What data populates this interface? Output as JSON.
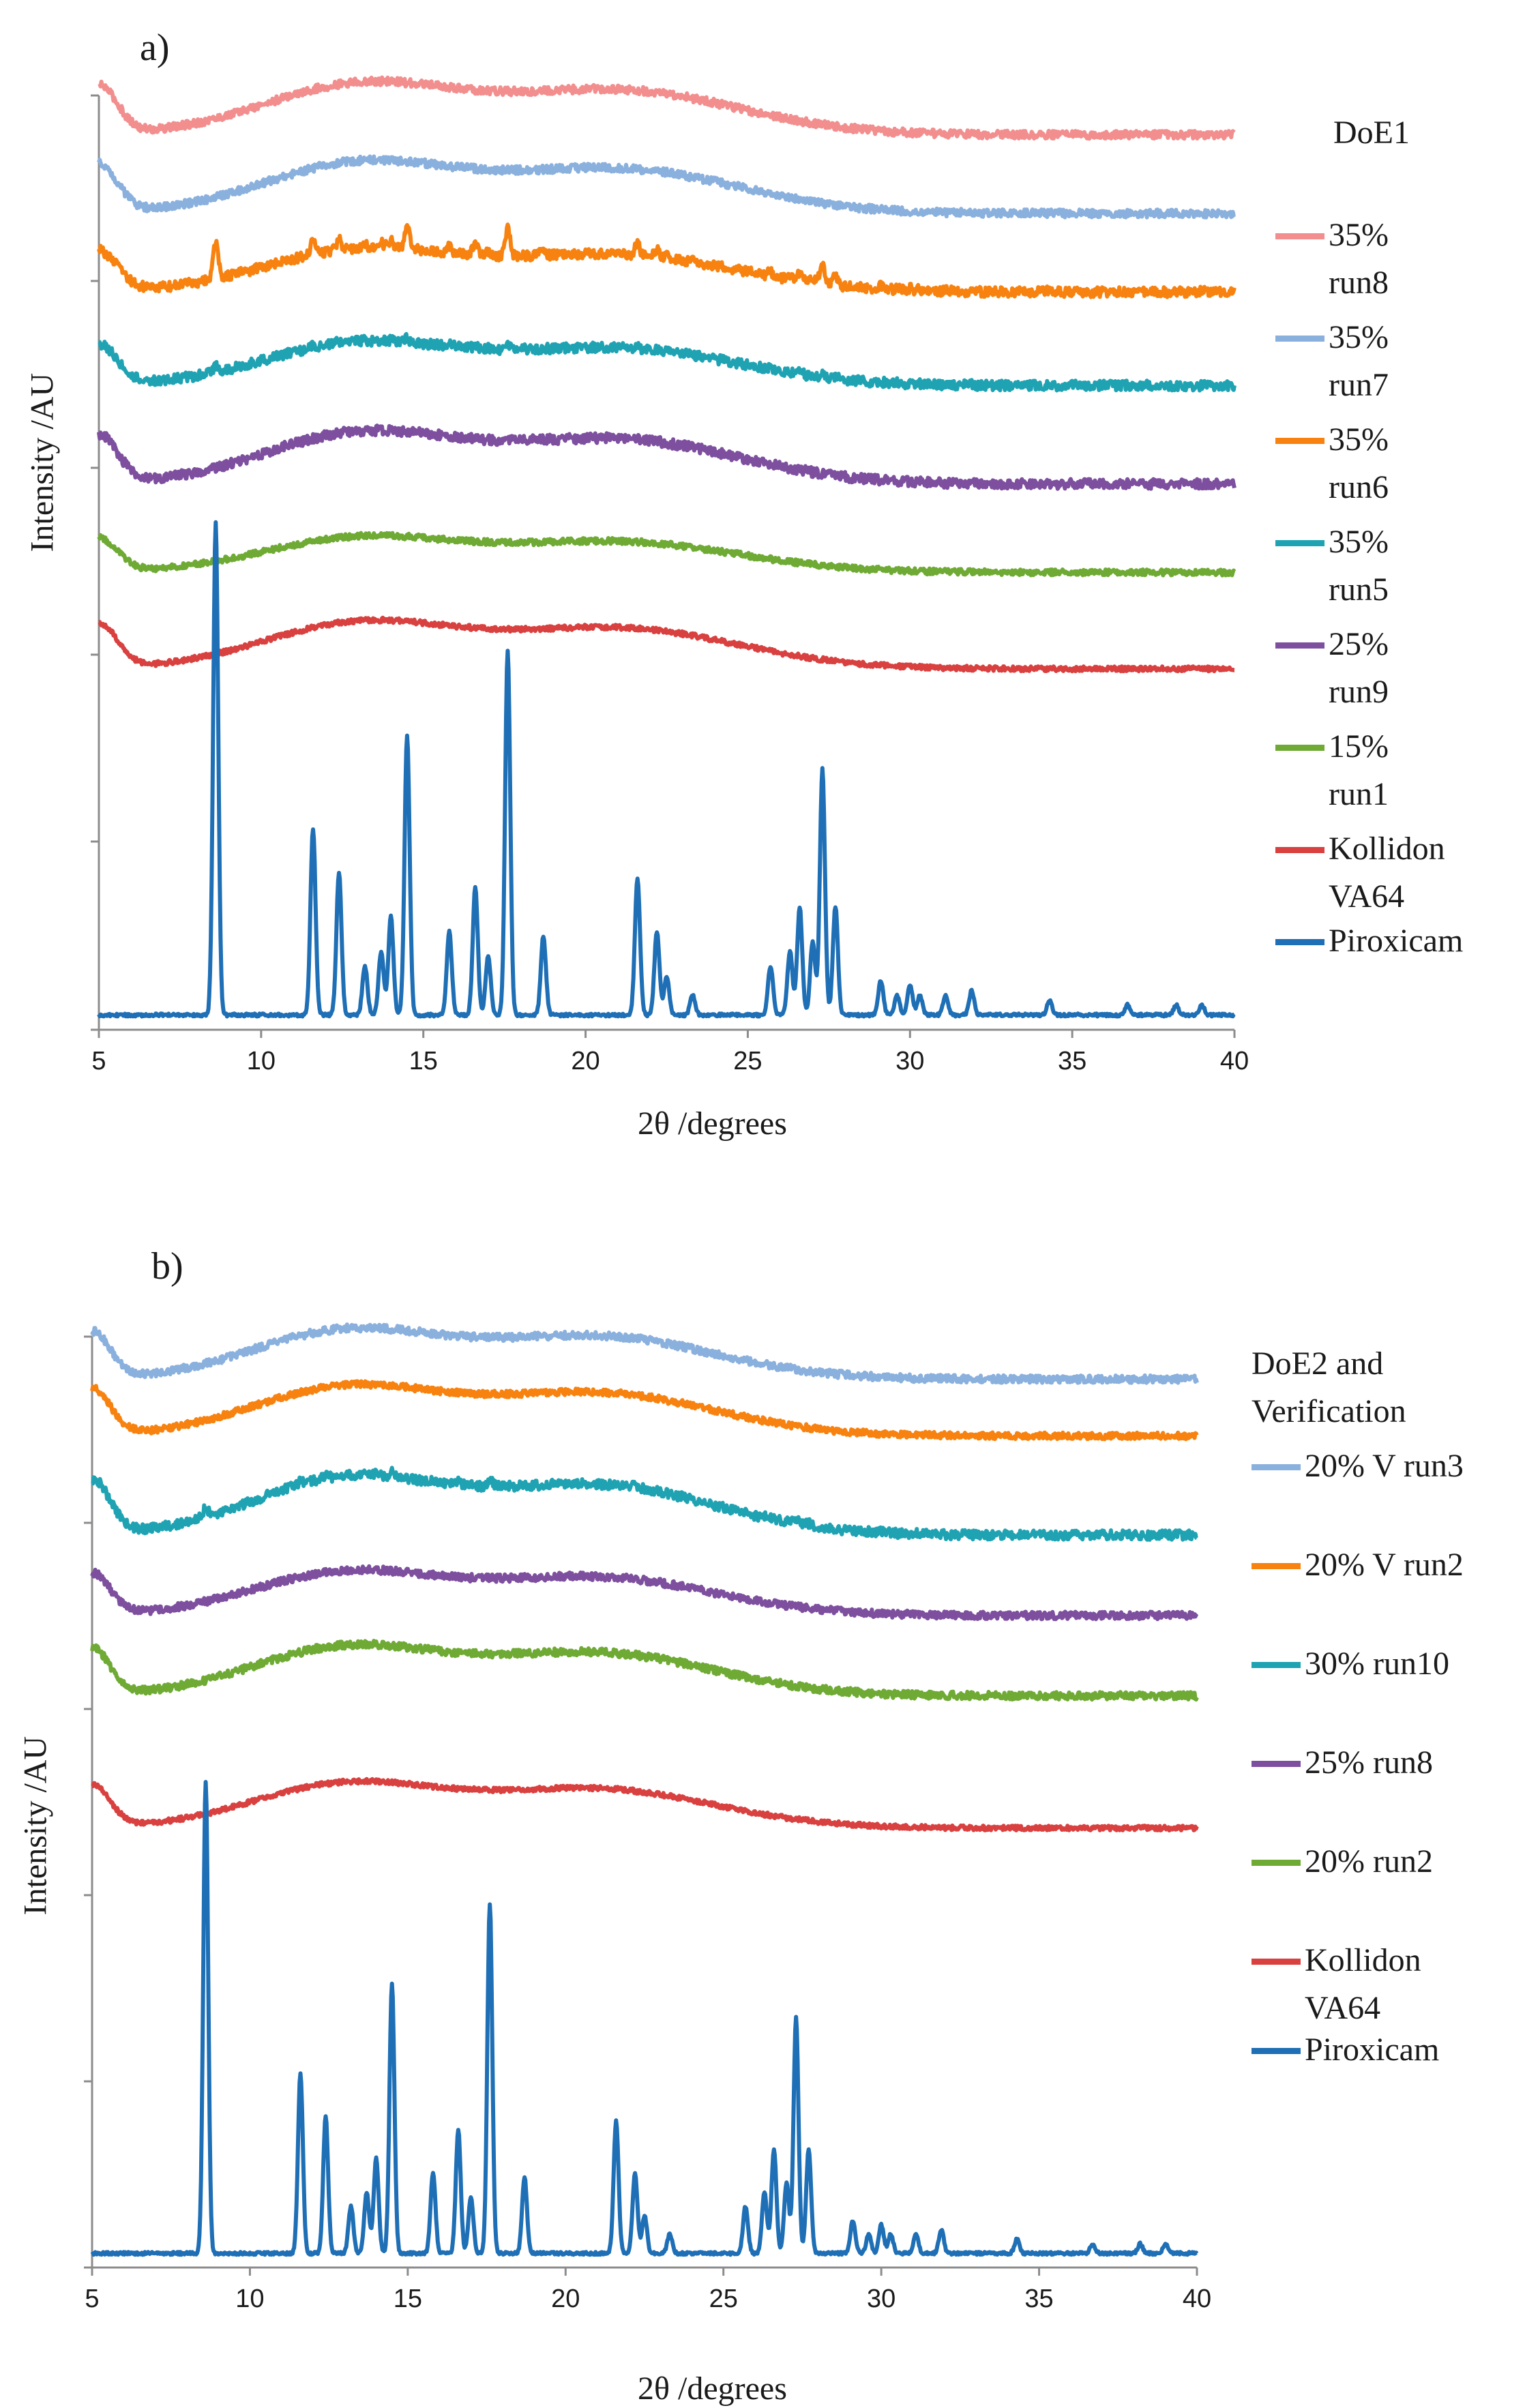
{
  "chart_data": [
    {
      "type": "line",
      "panel_label": "a)",
      "legend_title": "DoE1",
      "xlabel": "2θ /degrees",
      "ylabel": "Intensity /AU",
      "xlim": [
        5,
        40
      ],
      "xticks": [
        "5",
        "10",
        "15",
        "20",
        "25",
        "30",
        "35",
        "40"
      ],
      "y_tick_marks": 6,
      "series": [
        {
          "name": "35% run8",
          "color": "#F28E8E",
          "baseline": 5.0,
          "amorphous": 0.9,
          "noise": 0.04,
          "crystal": 0
        },
        {
          "name": "35% run7",
          "color": "#8AB0DD",
          "baseline": 4.2,
          "amorphous": 0.9,
          "noise": 0.04,
          "crystal": 0
        },
        {
          "name": "35% run6",
          "color": "#F7820F",
          "baseline": 3.4,
          "amorphous": 0.75,
          "noise": 0.05,
          "crystal": 0.38
        },
        {
          "name": "35% run5",
          "color": "#1FA3B3",
          "baseline": 2.45,
          "amorphous": 0.75,
          "noise": 0.05,
          "crystal": 0.06
        },
        {
          "name": "25% run9",
          "color": "#7D4F9E",
          "baseline": 1.45,
          "amorphous": 0.9,
          "noise": 0.05,
          "crystal": 0
        },
        {
          "name": "15% run1",
          "color": "#6EAA34",
          "baseline": 0.55,
          "amorphous": 0.62,
          "noise": 0.03,
          "crystal": 0
        },
        {
          "name": "Kollidon\nVA64",
          "color": "#D8413F",
          "baseline": -0.43,
          "amorphous": 0.82,
          "noise": 0.025,
          "crystal": 0
        },
        {
          "name": "Piroxicam",
          "color": "#1E6FB5",
          "baseline": -3.95,
          "amorphous": 0,
          "noise": 0.015,
          "crystal": 5.0
        }
      ]
    },
    {
      "type": "line",
      "panel_label": "b)",
      "legend_title": "DoE2 and\nVerification",
      "xlabel": "2θ /degrees",
      "ylabel": "Intensity /AU",
      "xlim": [
        5,
        40
      ],
      "xticks": [
        "5",
        "10",
        "15",
        "20",
        "25",
        "30",
        "35",
        "40"
      ],
      "y_tick_marks": 6,
      "series": [
        {
          "name": " 20% V run3",
          "color": "#8AB0DD",
          "baseline": 4.55,
          "amorphous": 0.9,
          "noise": 0.04,
          "crystal": 0
        },
        {
          "name": "20% V run2",
          "color": "#F7820F",
          "baseline": 3.95,
          "amorphous": 0.9,
          "noise": 0.035,
          "crystal": 0
        },
        {
          "name": "30% run10",
          "color": "#1FA3B3",
          "baseline": 2.9,
          "amorphous": 1.05,
          "noise": 0.05,
          "crystal": 0.1
        },
        {
          "name": "25% run8",
          "color": "#7D4F9E",
          "baseline": 2.05,
          "amorphous": 0.8,
          "noise": 0.04,
          "crystal": 0
        },
        {
          "name": "20% run2",
          "color": "#6EAA34",
          "baseline": 1.2,
          "amorphous": 0.9,
          "noise": 0.04,
          "crystal": 0
        },
        {
          "name": "Kollidon\nVA64",
          "color": "#D8413F",
          "baseline": -0.2,
          "amorphous": 0.82,
          "noise": 0.025,
          "crystal": 0
        },
        {
          "name": "Piroxicam",
          "color": "#1E6FB5",
          "baseline": -4.7,
          "amorphous": 0,
          "noise": 0.015,
          "crystal": 5.0
        }
      ]
    }
  ],
  "piroxicam_peaks": [
    {
      "pos": 8.6,
      "h": 1.0
    },
    {
      "pos": 11.6,
      "h": 0.38
    },
    {
      "pos": 12.4,
      "h": 0.29
    },
    {
      "pos": 13.2,
      "h": 0.1
    },
    {
      "pos": 13.7,
      "h": 0.13
    },
    {
      "pos": 14.0,
      "h": 0.2
    },
    {
      "pos": 14.5,
      "h": 0.57
    },
    {
      "pos": 15.8,
      "h": 0.17
    },
    {
      "pos": 16.6,
      "h": 0.26
    },
    {
      "pos": 17.0,
      "h": 0.12
    },
    {
      "pos": 17.6,
      "h": 0.74
    },
    {
      "pos": 18.7,
      "h": 0.16
    },
    {
      "pos": 21.6,
      "h": 0.28
    },
    {
      "pos": 22.2,
      "h": 0.17
    },
    {
      "pos": 22.5,
      "h": 0.08
    },
    {
      "pos": 23.3,
      "h": 0.04
    },
    {
      "pos": 25.7,
      "h": 0.1
    },
    {
      "pos": 26.3,
      "h": 0.13
    },
    {
      "pos": 26.6,
      "h": 0.22
    },
    {
      "pos": 27.0,
      "h": 0.15
    },
    {
      "pos": 27.3,
      "h": 0.5
    },
    {
      "pos": 27.7,
      "h": 0.22
    },
    {
      "pos": 29.1,
      "h": 0.07
    },
    {
      "pos": 29.6,
      "h": 0.04
    },
    {
      "pos": 30.0,
      "h": 0.06
    },
    {
      "pos": 30.3,
      "h": 0.04
    },
    {
      "pos": 31.1,
      "h": 0.04
    },
    {
      "pos": 31.9,
      "h": 0.05
    },
    {
      "pos": 34.3,
      "h": 0.03
    },
    {
      "pos": 36.7,
      "h": 0.02
    },
    {
      "pos": 38.2,
      "h": 0.02
    },
    {
      "pos": 39.0,
      "h": 0.02
    }
  ]
}
